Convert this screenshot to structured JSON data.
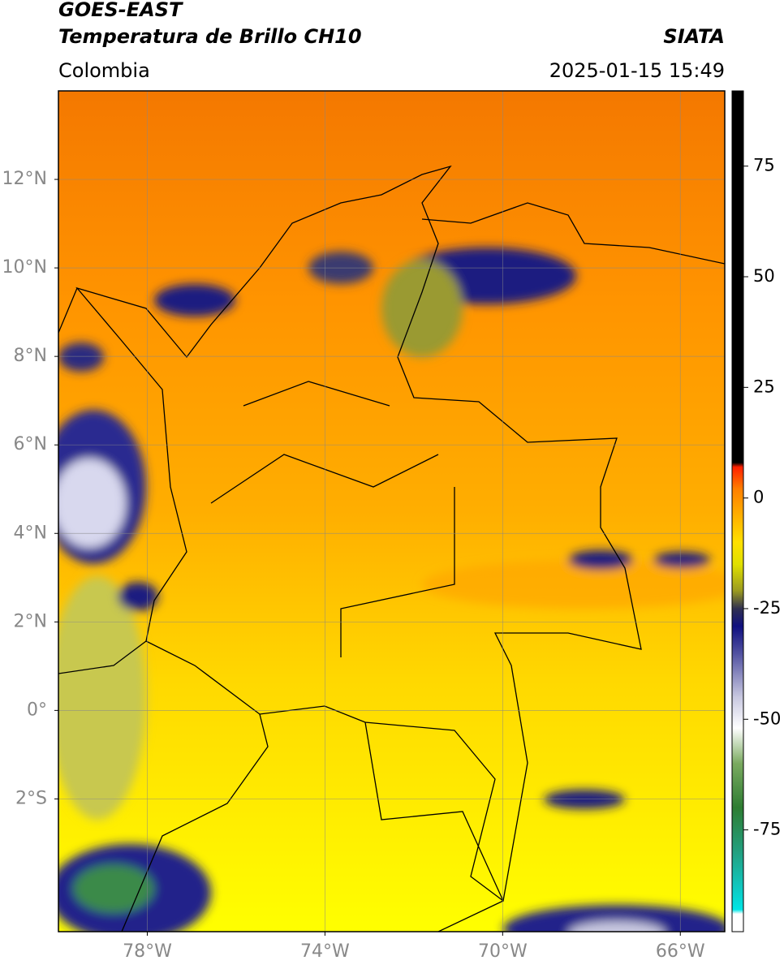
{
  "header": {
    "title": "GOES-EAST",
    "subtitle": "Temperatura de Brillo CH10",
    "region": "Colombia",
    "agency": "SIATA",
    "timestamp": "2025-01-15 15:49"
  },
  "map": {
    "xlim": [
      -80,
      -65
    ],
    "ylim": [
      -5,
      14
    ],
    "grid": true,
    "xticks": [
      {
        "value": -78,
        "label": "78°W"
      },
      {
        "value": -74,
        "label": "74°W"
      },
      {
        "value": -70,
        "label": "70°W"
      },
      {
        "value": -66,
        "label": "66°W"
      }
    ],
    "yticks": [
      {
        "value": -2,
        "label": "2°S"
      },
      {
        "value": 0,
        "label": "0°"
      },
      {
        "value": 2,
        "label": "2°N"
      },
      {
        "value": 4,
        "label": "4°N"
      },
      {
        "value": 6,
        "label": "6°N"
      },
      {
        "value": 8,
        "label": "8°N"
      },
      {
        "value": 10,
        "label": "10°N"
      },
      {
        "value": 12,
        "label": "12°N"
      }
    ]
  },
  "colorbar": {
    "lim": [
      -98,
      92
    ],
    "ticks": [
      -75,
      -50,
      -25,
      0,
      25,
      50,
      75
    ],
    "stops": [
      [
        -98,
        "#ffffff"
      ],
      [
        -94,
        "#ffffff"
      ],
      [
        -93,
        "#00e5e5"
      ],
      [
        -88,
        "#10c8c0"
      ],
      [
        -80,
        "#22a080"
      ],
      [
        -70,
        "#2e7d32"
      ],
      [
        -60,
        "#7aaa60"
      ],
      [
        -52,
        "#ffffff"
      ],
      [
        -45,
        "#c8c8e0"
      ],
      [
        -35,
        "#5050a0"
      ],
      [
        -29,
        "#101080"
      ],
      [
        -25,
        "#303050"
      ],
      [
        -21,
        "#9a9a20"
      ],
      [
        -15,
        "#e0e000"
      ],
      [
        -10,
        "#ffe000"
      ],
      [
        -4,
        "#ffb000"
      ],
      [
        2,
        "#ff8000"
      ],
      [
        7,
        "#ff2000"
      ],
      [
        8,
        "#000000"
      ],
      [
        92,
        "#000000"
      ]
    ]
  }
}
